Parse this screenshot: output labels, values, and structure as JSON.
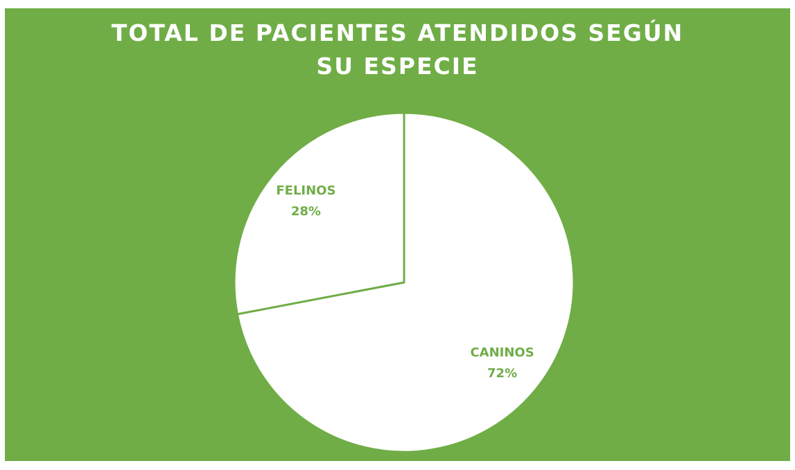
{
  "chart_data": {
    "type": "pie",
    "title": "TOTAL DE PACIENTES ATENDIDOS SEGÚN SU ESPECIE",
    "categories": [
      "CANINOS",
      "FELINOS"
    ],
    "values": [
      72,
      28
    ],
    "value_labels": [
      "72%",
      "28%"
    ],
    "colors": [
      "#ffffff",
      "#ffffff"
    ]
  }
}
